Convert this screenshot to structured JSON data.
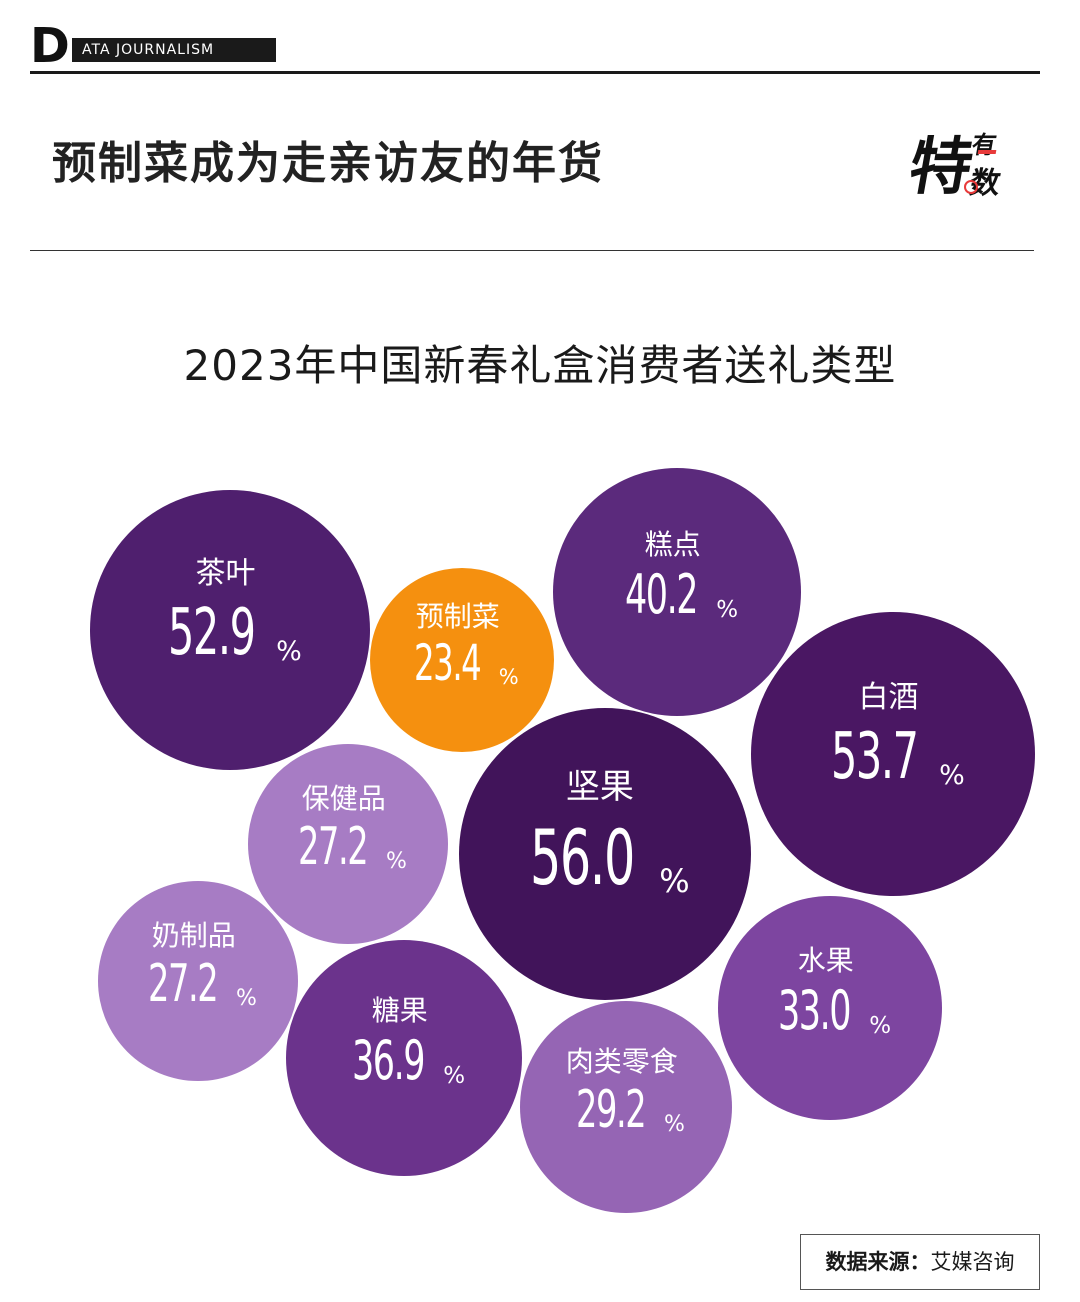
{
  "brand": {
    "letter": "D",
    "tag": "ATA JOURNALISM"
  },
  "headline": "预制菜成为走亲访友的年货",
  "logo": {
    "main": "特",
    "top": "有",
    "bottom": "数"
  },
  "source": {
    "label": "数据来源：",
    "value": "艾媒咨询"
  },
  "chart_data": {
    "type": "bubble",
    "title": "2023年中国新春礼盒消费者送礼类型",
    "unit": "%",
    "items": [
      {
        "label": "茶叶",
        "value": 52.9,
        "color": "#4f1f6e"
      },
      {
        "label": "预制菜",
        "value": 23.4,
        "color": "#f5900f"
      },
      {
        "label": "糕点",
        "value": 40.2,
        "color": "#5b2a7c"
      },
      {
        "label": "白酒",
        "value": 53.7,
        "color": "#4a1763"
      },
      {
        "label": "保健品",
        "value": 27.2,
        "color": "#a77cc4"
      },
      {
        "label": "坚果",
        "value": 56.0,
        "color": "#41145a"
      },
      {
        "label": "奶制品",
        "value": 27.2,
        "color": "#a77cc4"
      },
      {
        "label": "糖果",
        "value": 36.9,
        "color": "#6b338c"
      },
      {
        "label": "肉类零食",
        "value": 29.2,
        "color": "#9565b4"
      },
      {
        "label": "水果",
        "value": 33.0,
        "color": "#7d45a0"
      }
    ]
  }
}
